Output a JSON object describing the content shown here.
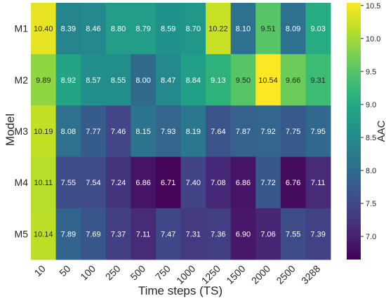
{
  "chart_data": {
    "type": "heatmap",
    "title": "",
    "xlabel": "Time steps (TS)",
    "ylabel": "Model",
    "colorbar_label": "AAC",
    "colormap": "viridis",
    "vmin": 6.65,
    "vmax": 10.54,
    "colorbar_ticks": [
      7.0,
      7.5,
      8.0,
      8.5,
      9.0,
      9.5,
      10.0,
      10.5
    ],
    "x_categories": [
      "10",
      "50",
      "100",
      "250",
      "500",
      "750",
      "1000",
      "1250",
      "1500",
      "2000",
      "2500",
      "3288"
    ],
    "y_categories": [
      "M1",
      "M2",
      "M3",
      "M4",
      "M5"
    ],
    "values": [
      [
        10.4,
        8.39,
        8.46,
        8.8,
        8.79,
        8.59,
        8.7,
        10.22,
        8.1,
        9.51,
        8.09,
        9.03
      ],
      [
        9.89,
        8.92,
        8.57,
        8.55,
        8.0,
        8.47,
        8.84,
        9.13,
        9.5,
        10.54,
        9.66,
        9.31
      ],
      [
        10.19,
        8.08,
        7.77,
        7.46,
        8.15,
        7.93,
        8.19,
        7.64,
        7.87,
        7.92,
        7.75,
        7.95
      ],
      [
        10.11,
        7.55,
        7.54,
        7.24,
        6.86,
        6.71,
        7.4,
        7.08,
        6.86,
        7.72,
        6.76,
        7.11
      ],
      [
        10.14,
        7.89,
        7.69,
        7.37,
        7.11,
        7.47,
        7.31,
        7.36,
        6.9,
        7.06,
        7.55,
        7.39
      ]
    ]
  }
}
